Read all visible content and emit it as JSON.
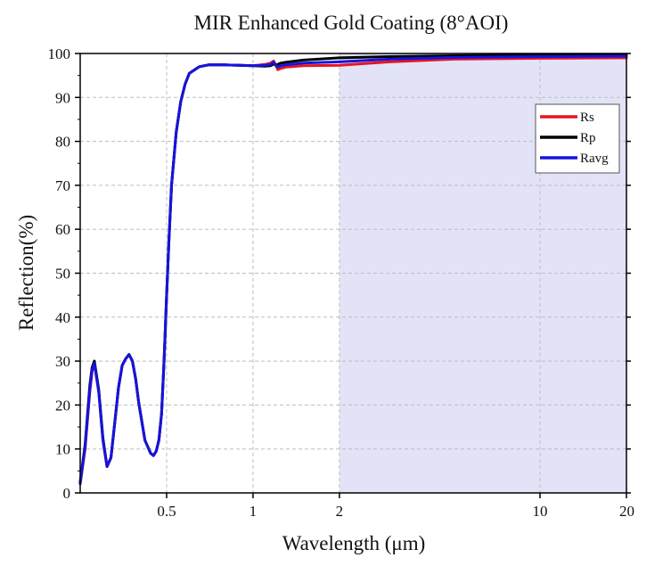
{
  "chart_data": {
    "type": "line",
    "title": "MIR Enhanced Gold Coating (8°AOI)",
    "xlabel": "Wavelength (μm)",
    "ylabel": "Reflection(%)",
    "xscale": "log",
    "xlim": [
      0.25,
      20
    ],
    "ylim": [
      0,
      100
    ],
    "xticks": [
      0.5,
      1,
      2,
      10,
      20
    ],
    "xtick_labels": [
      "0.5",
      "1",
      "2",
      "10",
      "20"
    ],
    "yticks": [
      0,
      10,
      20,
      30,
      40,
      50,
      60,
      70,
      80,
      90,
      100
    ],
    "ytick_labels": [
      "0",
      "10",
      "20",
      "30",
      "40",
      "50",
      "60",
      "70",
      "80",
      "90",
      "100"
    ],
    "grid": true,
    "legend_position": "top-right",
    "shaded_region": {
      "x_from": 2,
      "x_to": 20,
      "color": "#e3e3f8"
    },
    "series": [
      {
        "name": "Rs",
        "color": "#e8141e",
        "x": [
          0.25,
          0.26,
          0.27,
          0.275,
          0.28,
          0.29,
          0.3,
          0.31,
          0.32,
          0.33,
          0.34,
          0.35,
          0.36,
          0.37,
          0.38,
          0.39,
          0.4,
          0.42,
          0.44,
          0.45,
          0.46,
          0.47,
          0.48,
          0.49,
          0.5,
          0.51,
          0.52,
          0.54,
          0.56,
          0.58,
          0.6,
          0.65,
          0.7,
          0.8,
          0.9,
          1.0,
          1.1,
          1.15,
          1.18,
          1.2,
          1.22,
          1.25,
          1.3,
          1.5,
          2,
          3,
          5,
          10,
          20
        ],
        "y": [
          2,
          10,
          23,
          27.5,
          29.5,
          23,
          12,
          6,
          8,
          16,
          24,
          29,
          30.5,
          31.5,
          30,
          26,
          20.5,
          12,
          9,
          8.5,
          9.5,
          12,
          18,
          30,
          45,
          58,
          70,
          82,
          89,
          93,
          95.5,
          97,
          97.4,
          97.4,
          97.3,
          97.2,
          97.5,
          97.8,
          98.3,
          97.4,
          96.3,
          96.6,
          96.9,
          97.2,
          97.3,
          98.1,
          98.7,
          98.9,
          99
        ]
      },
      {
        "name": "Rp",
        "color": "#000000",
        "x": [
          0.25,
          0.26,
          0.27,
          0.275,
          0.28,
          0.29,
          0.3,
          0.31,
          0.32,
          0.33,
          0.34,
          0.35,
          0.36,
          0.37,
          0.38,
          0.39,
          0.4,
          0.42,
          0.44,
          0.45,
          0.46,
          0.47,
          0.48,
          0.49,
          0.5,
          0.51,
          0.52,
          0.54,
          0.56,
          0.58,
          0.6,
          0.65,
          0.7,
          0.8,
          0.9,
          1.0,
          1.1,
          1.15,
          1.18,
          1.2,
          1.22,
          1.25,
          1.3,
          1.5,
          2,
          3,
          5,
          10,
          20
        ],
        "y": [
          2.5,
          11,
          24.5,
          28.5,
          30,
          23.5,
          12.5,
          6,
          8,
          16,
          24,
          29,
          30.5,
          31.5,
          30,
          26,
          20.5,
          12,
          9,
          8.5,
          9.5,
          12,
          18,
          30,
          45,
          58,
          70,
          82,
          89,
          93,
          95.5,
          97,
          97.4,
          97.4,
          97.3,
          97.2,
          97.1,
          97.2,
          97.6,
          97.3,
          97.5,
          97.8,
          98,
          98.5,
          99,
          99.3,
          99.5,
          99.7,
          99.8
        ]
      },
      {
        "name": "Ravg",
        "color": "#1414e0",
        "x": [
          0.25,
          0.26,
          0.27,
          0.275,
          0.28,
          0.29,
          0.3,
          0.31,
          0.32,
          0.33,
          0.34,
          0.35,
          0.36,
          0.37,
          0.38,
          0.39,
          0.4,
          0.42,
          0.44,
          0.45,
          0.46,
          0.47,
          0.48,
          0.49,
          0.5,
          0.51,
          0.52,
          0.54,
          0.56,
          0.58,
          0.6,
          0.65,
          0.7,
          0.8,
          0.9,
          1.0,
          1.1,
          1.15,
          1.18,
          1.2,
          1.22,
          1.25,
          1.3,
          1.5,
          2,
          3,
          5,
          10,
          20
        ],
        "y": [
          2.2,
          10.5,
          23.5,
          28,
          29.5,
          23,
          12,
          6,
          8,
          16,
          24,
          29,
          30.5,
          31.5,
          30,
          26,
          20.5,
          12,
          9,
          8.5,
          9.5,
          12,
          18,
          30,
          45,
          58,
          70,
          82,
          89,
          93,
          95.5,
          97,
          97.4,
          97.4,
          97.3,
          97.2,
          97.3,
          97.5,
          98,
          97.3,
          96.9,
          97.2,
          97.4,
          97.8,
          98.1,
          98.7,
          99.1,
          99.3,
          99.4
        ]
      }
    ]
  }
}
